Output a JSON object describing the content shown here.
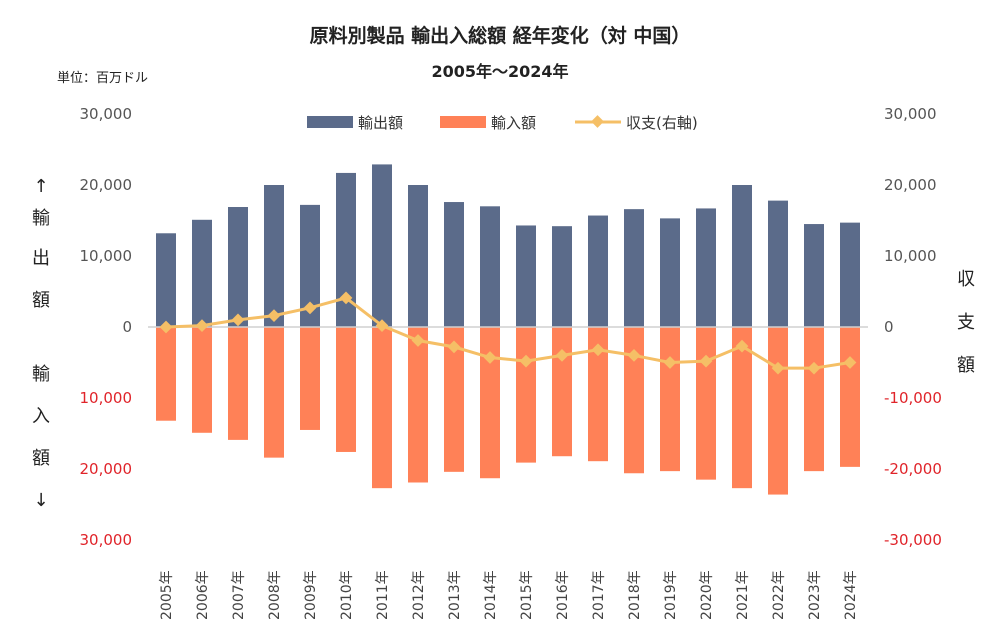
{
  "chart_data": {
    "type": "bar",
    "title": "原料別製品 輸出入総額 経年変化（対 中国）",
    "subtitle": "2005年～2024年",
    "unit_label": "単位：百万ドル",
    "categories": [
      "2005年",
      "2006年",
      "2007年",
      "2008年",
      "2009年",
      "2010年",
      "2011年",
      "2012年",
      "2013年",
      "2014年",
      "2015年",
      "2016年",
      "2017年",
      "2018年",
      "2019年",
      "2020年",
      "2021年",
      "2022年",
      "2023年",
      "2024年"
    ],
    "series": [
      {
        "name": "輸出額",
        "type": "bar",
        "color": "#5b6b8a",
        "values": [
          13200,
          15100,
          16900,
          20000,
          17200,
          21700,
          22900,
          20000,
          17600,
          17000,
          14300,
          14200,
          15700,
          16600,
          15300,
          16700,
          20000,
          17800,
          14500,
          14700
        ]
      },
      {
        "name": "輸入額",
        "type": "bar",
        "color": "#ff8157",
        "values": [
          -13200,
          -14900,
          -15900,
          -18400,
          -14500,
          -17600,
          -22700,
          -21900,
          -20400,
          -21300,
          -19100,
          -18200,
          -18900,
          -20600,
          -20300,
          -21500,
          -22700,
          -23600,
          -20300,
          -19700
        ]
      },
      {
        "name": "収支(右軸)",
        "type": "line",
        "color": "#f5bf66",
        "axis": "right",
        "values": [
          0,
          200,
          1000,
          1600,
          2700,
          4100,
          200,
          -1900,
          -2800,
          -4300,
          -4800,
          -4000,
          -3200,
          -4000,
          -5000,
          -4800,
          -2700,
          -5800,
          -5800,
          -5000
        ]
      }
    ],
    "ylim": [
      -30000,
      30000
    ],
    "y_ticks_left": [
      "30,000",
      "20,000",
      "10,000",
      "0",
      "10,000",
      "20,000",
      "30,000"
    ],
    "y_ticks_right": [
      "30,000",
      "20,000",
      "10,000",
      "0",
      "-10,000",
      "-20,000",
      "-30,000"
    ],
    "left_axis_label_top": [
      "↑",
      "輸",
      "出",
      "額"
    ],
    "left_axis_label_bottom": [
      "輸",
      "入",
      "額",
      "↓"
    ],
    "right_axis_label": [
      "収",
      "支",
      "額"
    ],
    "legend_position": "top",
    "grid": false,
    "colors": {
      "negative_tick": "#e0242a",
      "zero_line": "#d0d0d0"
    }
  }
}
